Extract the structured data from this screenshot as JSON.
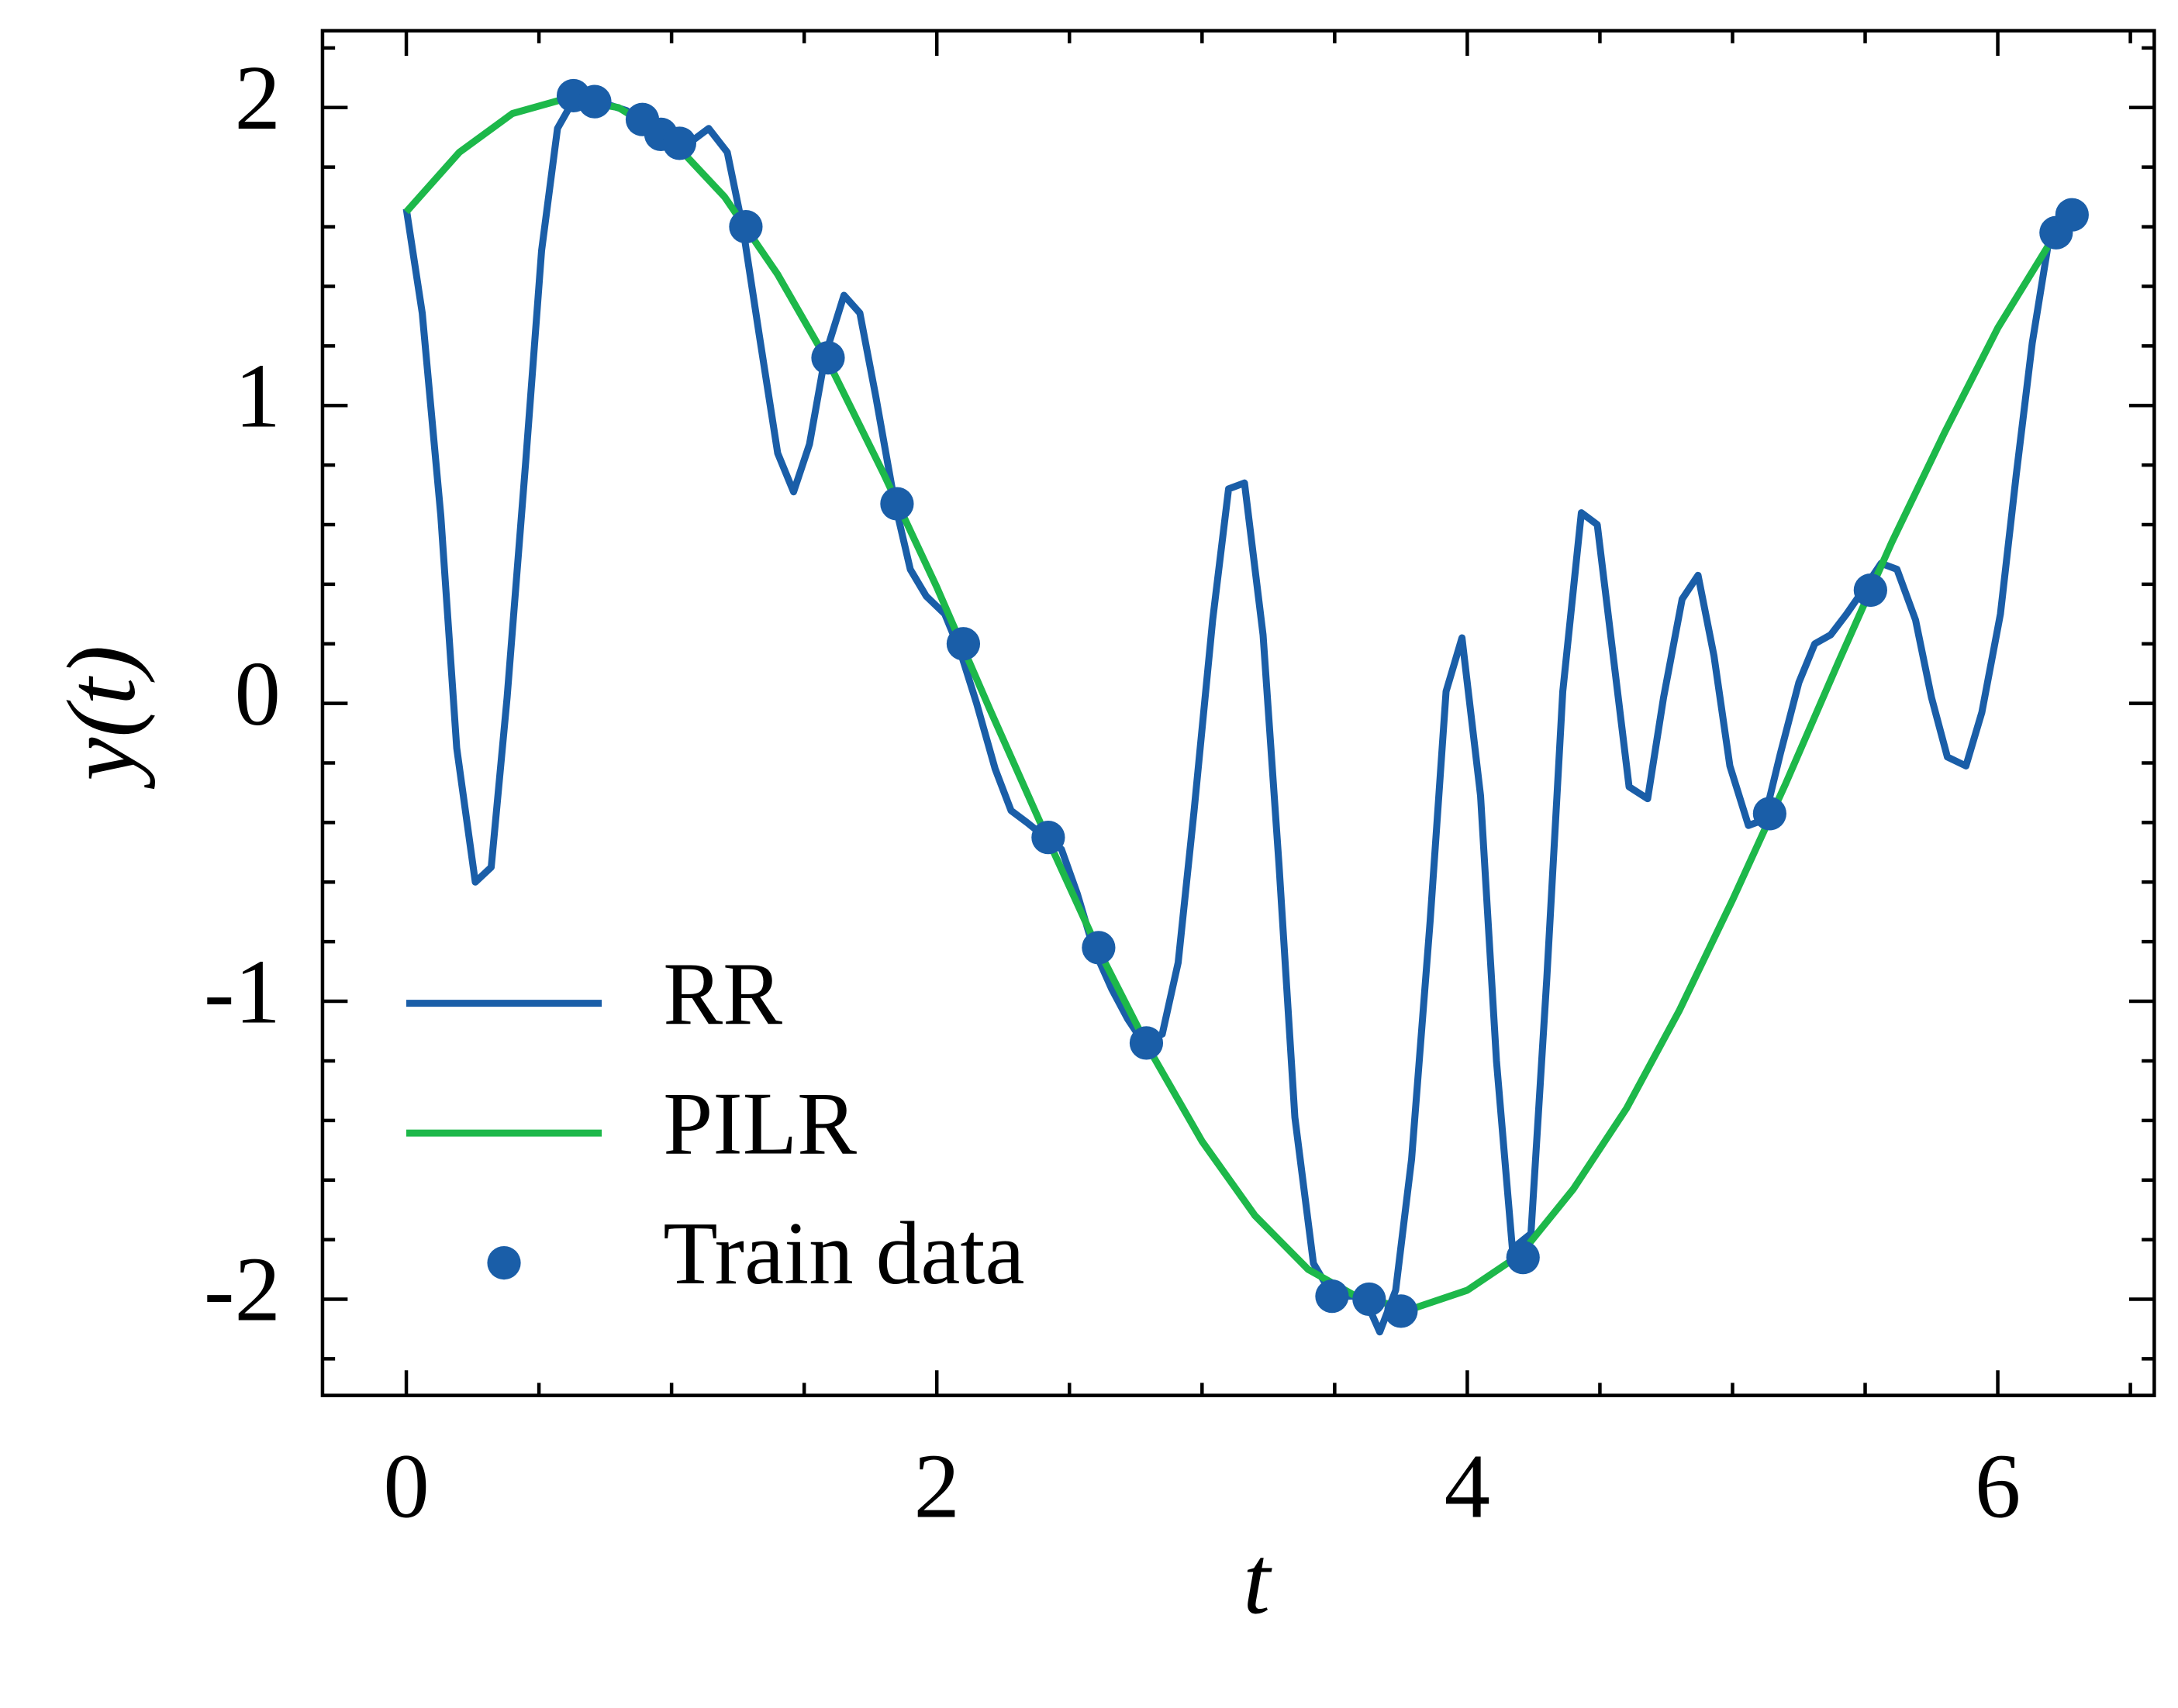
{
  "chart_data": {
    "type": "line",
    "xlabel": "t",
    "ylabel": "y(t)",
    "xlim": [
      -0.316,
      6.59
    ],
    "ylim": [
      -2.323,
      2.258
    ],
    "xticks": [
      0,
      2,
      4,
      6
    ],
    "yticks": [
      -2,
      -1,
      0,
      1,
      2
    ],
    "xticks_minor": [
      0.5,
      1,
      1.5,
      2.5,
      3,
      3.5,
      4.5,
      5,
      5.5,
      6.5
    ],
    "yticks_minor": [
      -2.2,
      -1.8,
      -1.6,
      -1.4,
      -1.2,
      -0.8,
      -0.6,
      -0.4,
      -0.2,
      0.2,
      0.4,
      0.6,
      0.8,
      1.2,
      1.4,
      1.6,
      1.8,
      2.2
    ],
    "legend": "lower left",
    "series": [
      {
        "name": "RR",
        "type": "line",
        "color": "#1a5ea8",
        "x": [
          0,
          0.06,
          0.13,
          0.19,
          0.26,
          0.32,
          0.38,
          0.45,
          0.51,
          0.57,
          0.64,
          0.7,
          0.76,
          0.83,
          0.89,
          0.95,
          1.02,
          1.08,
          1.14,
          1.21,
          1.27,
          1.33,
          1.4,
          1.46,
          1.52,
          1.58,
          1.65,
          1.71,
          1.77,
          1.84,
          1.9,
          1.96,
          2.03,
          2.09,
          2.15,
          2.22,
          2.28,
          2.34,
          2.41,
          2.47,
          2.53,
          2.59,
          2.66,
          2.72,
          2.78,
          2.85,
          2.91,
          2.97,
          3.04,
          3.1,
          3.16,
          3.23,
          3.29,
          3.35,
          3.42,
          3.48,
          3.54,
          3.61,
          3.67,
          3.73,
          3.79,
          3.86,
          3.92,
          3.98,
          4.05,
          4.11,
          4.17,
          4.24,
          4.3,
          4.36,
          4.43,
          4.49,
          4.55,
          4.61,
          4.68,
          4.74,
          4.81,
          4.87,
          4.93,
          4.99,
          5.06,
          5.12,
          5.18,
          5.25,
          5.31,
          5.37,
          5.43,
          5.5,
          5.56,
          5.62,
          5.69,
          5.75,
          5.81,
          5.88,
          5.94,
          6.01,
          6.07,
          6.13,
          6.19,
          6.26
        ],
        "values": [
          1.66,
          1.31,
          0.63,
          -0.15,
          -0.6,
          -0.55,
          0.02,
          0.81,
          1.52,
          1.93,
          2.04,
          2.04,
          2.01,
          1.99,
          1.95,
          1.9,
          1.88,
          1.89,
          1.93,
          1.85,
          1.59,
          1.24,
          0.84,
          0.71,
          0.87,
          1.17,
          1.37,
          1.31,
          1.03,
          0.68,
          0.45,
          0.36,
          0.3,
          0.17,
          0,
          -0.22,
          -0.36,
          -0.4,
          -0.45,
          -0.49,
          -0.64,
          -0.82,
          -0.96,
          -1.06,
          -1.14,
          -1.11,
          -0.87,
          -0.36,
          0.28,
          0.72,
          0.74,
          0.23,
          -0.54,
          -1.39,
          -1.88,
          -1.97,
          -1.99,
          -1.99,
          -2.11,
          -1.97,
          -1.53,
          -0.73,
          0.04,
          0.22,
          -0.31,
          -1.2,
          -1.83,
          -1.78,
          -0.92,
          0.04,
          0.64,
          0.6,
          0.16,
          -0.28,
          -0.32,
          0.02,
          0.35,
          0.43,
          0.16,
          -0.21,
          -0.41,
          -0.39,
          -0.17,
          0.07,
          0.2,
          0.23,
          0.3,
          0.39,
          0.47,
          0.45,
          0.28,
          0.02,
          -0.18,
          -0.21,
          -0.03,
          0.3,
          0.77,
          1.21,
          1.54,
          1.63
        ]
      },
      {
        "name": "PILR",
        "type": "line",
        "color": "#1db84a",
        "x": [
          0,
          0.2,
          0.4,
          0.6,
          0.8,
          1.0,
          1.2,
          1.4,
          1.6,
          1.8,
          2.0,
          2.2,
          2.4,
          2.6,
          2.8,
          3.0,
          3.2,
          3.4,
          3.6,
          3.8,
          4.0,
          4.2,
          4.4,
          4.6,
          4.8,
          5.0,
          5.2,
          5.4,
          5.6,
          5.8,
          6.0,
          6.2,
          6.28
        ],
        "values": [
          1.65,
          1.85,
          1.98,
          2.03,
          2.0,
          1.89,
          1.7,
          1.44,
          1.13,
          0.77,
          0.39,
          -0.02,
          -0.42,
          -0.81,
          -1.16,
          -1.47,
          -1.72,
          -1.9,
          -2.0,
          -2.03,
          -1.97,
          -1.85,
          -1.63,
          -1.36,
          -1.03,
          -0.66,
          -0.27,
          0.14,
          0.54,
          0.91,
          1.26,
          1.55,
          1.64
        ]
      },
      {
        "name": "Train data",
        "type": "scatter",
        "color": "#1a5ea8",
        "x": [
          0.63,
          0.71,
          0.89,
          0.96,
          1.03,
          1.28,
          1.59,
          1.85,
          2.1,
          2.42,
          2.61,
          2.79,
          3.49,
          3.63,
          3.75,
          4.21,
          5.14,
          5.52,
          6.22,
          6.28
        ],
        "values": [
          2.04,
          2.02,
          1.96,
          1.91,
          1.88,
          1.6,
          1.16,
          0.67,
          0.2,
          -0.45,
          -0.82,
          -1.14,
          -1.99,
          -2.0,
          -2.04,
          -1.86,
          -0.37,
          0.38,
          1.58,
          1.64
        ]
      }
    ]
  }
}
